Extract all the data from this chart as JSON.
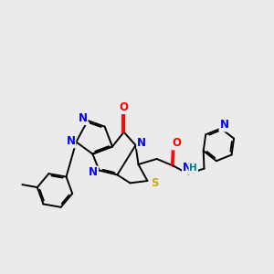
{
  "bg_color": "#ebebeb",
  "atom_colors": {
    "N": "#0000FF",
    "O": "#FF0000",
    "S": "#CCAA00",
    "C": "#000000",
    "H": "#008080"
  },
  "bond_color": "#000000",
  "lw": 1.4,
  "fs": 8.5,
  "dbo": 0.055
}
